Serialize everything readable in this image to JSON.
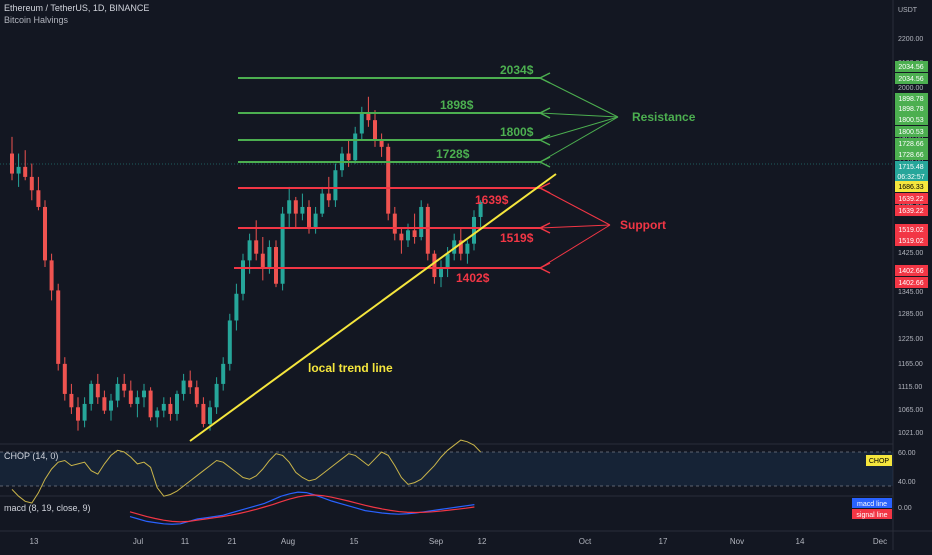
{
  "header": {
    "symbol_line": "Ethereum / TetherUS, 1D, BINANCE",
    "indicator": "Bitcoin Halvings"
  },
  "price_axis": {
    "currency": "USDT",
    "ticks": [
      "2200.00",
      "2100.00",
      "2000.00",
      "1900.00",
      "1800.00",
      "1725.00",
      "1650.00",
      "1575.00",
      "1500.00",
      "1425.00",
      "1345.00",
      "1285.00",
      "1225.00",
      "1165.00",
      "1115.00",
      "1065.00",
      "1021.00"
    ]
  },
  "time_axis": {
    "labels": [
      "13",
      "Jul",
      "11",
      "21",
      "Aug",
      "15",
      "Sep",
      "12",
      "Oct",
      "17",
      "Nov",
      "14",
      "Dec"
    ]
  },
  "price_badges": [
    {
      "text": "2034.56",
      "color": "#4caf50"
    },
    {
      "text": "2034.56",
      "color": "#4caf50"
    },
    {
      "text": "1898.78",
      "color": "#4caf50"
    },
    {
      "text": "1898.78",
      "color": "#4caf50"
    },
    {
      "text": "1800.53",
      "color": "#4caf50"
    },
    {
      "text": "1800.53",
      "color": "#4caf50"
    },
    {
      "text": "1728.66",
      "color": "#4caf50"
    },
    {
      "text": "1728.66",
      "color": "#4caf50"
    },
    {
      "text": "1715.48",
      "color": "#26a69a"
    },
    {
      "text": "06:32:57",
      "color": "#26a69a"
    },
    {
      "text": "1686.33",
      "color": "#f5e63d"
    },
    {
      "text": "1639.22",
      "color": "#f23645"
    },
    {
      "text": "1639.22",
      "color": "#f23645"
    },
    {
      "text": "1519.02",
      "color": "#f23645"
    },
    {
      "text": "1519.02",
      "color": "#f23645"
    },
    {
      "text": "1402.66",
      "color": "#f23645"
    },
    {
      "text": "1402.66",
      "color": "#f23645"
    }
  ],
  "annotations": {
    "resistance_label": "Resistance",
    "support_label": "Support",
    "trend_line_label": "local trend line",
    "level_labels": [
      "2034$",
      "1898$",
      "1800$",
      "1728$",
      "1639$",
      "1519$",
      "1402$"
    ]
  },
  "chop_pane": {
    "label": "CHOP (14, 0)",
    "ticks": [
      "60.00",
      "40.00"
    ],
    "badge": "CHOP"
  },
  "macd_pane": {
    "label": "macd (8, 19, close, 9)",
    "ticks": [
      "0.00"
    ],
    "legend": [
      "macd line",
      "signal line"
    ]
  },
  "colors": {
    "background": "#131722",
    "up": "#26a69a",
    "down": "#ef5350",
    "resistance": "#4caf50",
    "support": "#f23645",
    "trend": "#f5e63d"
  },
  "chart_data": {
    "type": "candlestick",
    "title": "Ethereum / TetherUS, 1D, BINANCE",
    "y_unit": "USDT",
    "ylim": [
      990,
      2230
    ],
    "x_range": [
      "Jun 6",
      "Dec 2"
    ],
    "candles_ohlc": [
      [
        1860,
        1910,
        1780,
        1800
      ],
      [
        1800,
        1860,
        1760,
        1820
      ],
      [
        1820,
        1870,
        1780,
        1790
      ],
      [
        1790,
        1830,
        1720,
        1750
      ],
      [
        1750,
        1790,
        1690,
        1700
      ],
      [
        1700,
        1720,
        1520,
        1540
      ],
      [
        1540,
        1560,
        1420,
        1450
      ],
      [
        1450,
        1470,
        1210,
        1230
      ],
      [
        1230,
        1250,
        1120,
        1140
      ],
      [
        1140,
        1170,
        1080,
        1100
      ],
      [
        1100,
        1130,
        1030,
        1060
      ],
      [
        1060,
        1130,
        1040,
        1110
      ],
      [
        1110,
        1180,
        1090,
        1170
      ],
      [
        1170,
        1200,
        1110,
        1130
      ],
      [
        1130,
        1150,
        1080,
        1090
      ],
      [
        1090,
        1140,
        1060,
        1120
      ],
      [
        1120,
        1190,
        1100,
        1170
      ],
      [
        1170,
        1200,
        1130,
        1150
      ],
      [
        1150,
        1180,
        1100,
        1110
      ],
      [
        1110,
        1150,
        1070,
        1130
      ],
      [
        1130,
        1170,
        1100,
        1150
      ],
      [
        1150,
        1160,
        1060,
        1070
      ],
      [
        1070,
        1100,
        1040,
        1090
      ],
      [
        1090,
        1130,
        1070,
        1110
      ],
      [
        1110,
        1130,
        1060,
        1080
      ],
      [
        1080,
        1150,
        1060,
        1140
      ],
      [
        1140,
        1200,
        1120,
        1180
      ],
      [
        1180,
        1210,
        1140,
        1160
      ],
      [
        1160,
        1180,
        1100,
        1110
      ],
      [
        1110,
        1130,
        1040,
        1050
      ],
      [
        1050,
        1120,
        1030,
        1100
      ],
      [
        1100,
        1190,
        1080,
        1170
      ],
      [
        1170,
        1250,
        1150,
        1230
      ],
      [
        1230,
        1380,
        1210,
        1360
      ],
      [
        1360,
        1470,
        1330,
        1440
      ],
      [
        1440,
        1560,
        1420,
        1540
      ],
      [
        1540,
        1620,
        1500,
        1600
      ],
      [
        1600,
        1660,
        1540,
        1560
      ],
      [
        1560,
        1610,
        1480,
        1520
      ],
      [
        1520,
        1600,
        1500,
        1580
      ],
      [
        1580,
        1600,
        1460,
        1470
      ],
      [
        1470,
        1700,
        1450,
        1680
      ],
      [
        1680,
        1760,
        1640,
        1720
      ],
      [
        1720,
        1730,
        1640,
        1680
      ],
      [
        1680,
        1740,
        1660,
        1700
      ],
      [
        1700,
        1720,
        1620,
        1640
      ],
      [
        1640,
        1700,
        1620,
        1680
      ],
      [
        1680,
        1760,
        1670,
        1740
      ],
      [
        1740,
        1790,
        1700,
        1720
      ],
      [
        1720,
        1830,
        1700,
        1810
      ],
      [
        1810,
        1880,
        1790,
        1860
      ],
      [
        1860,
        1900,
        1820,
        1840
      ],
      [
        1840,
        1940,
        1830,
        1920
      ],
      [
        1920,
        2000,
        1900,
        1980
      ],
      [
        1980,
        2030,
        1940,
        1960
      ],
      [
        1960,
        1990,
        1880,
        1900
      ],
      [
        1900,
        1920,
        1850,
        1880
      ],
      [
        1880,
        1890,
        1660,
        1680
      ],
      [
        1680,
        1700,
        1600,
        1620
      ],
      [
        1620,
        1640,
        1560,
        1600
      ],
      [
        1600,
        1650,
        1580,
        1630
      ],
      [
        1630,
        1680,
        1590,
        1610
      ],
      [
        1610,
        1720,
        1600,
        1700
      ],
      [
        1700,
        1710,
        1540,
        1560
      ],
      [
        1560,
        1570,
        1470,
        1490
      ],
      [
        1490,
        1540,
        1460,
        1520
      ],
      [
        1520,
        1580,
        1490,
        1560
      ],
      [
        1560,
        1620,
        1540,
        1600
      ],
      [
        1600,
        1640,
        1540,
        1560
      ],
      [
        1560,
        1600,
        1530,
        1590
      ],
      [
        1590,
        1690,
        1570,
        1670
      ],
      [
        1670,
        1720,
        1640,
        1715
      ]
    ],
    "overlay_lines": [
      {
        "name": "2034$",
        "price": 2034.56,
        "kind": "resistance"
      },
      {
        "name": "1898$",
        "price": 1898.78,
        "kind": "resistance"
      },
      {
        "name": "1800$",
        "price": 1800.53,
        "kind": "resistance"
      },
      {
        "name": "1728$",
        "price": 1728.66,
        "kind": "resistance"
      },
      {
        "name": "1639$",
        "price": 1639.22,
        "kind": "support"
      },
      {
        "name": "1519$",
        "price": 1519.02,
        "kind": "support"
      },
      {
        "name": "1402$",
        "price": 1402.66,
        "kind": "support"
      }
    ],
    "trend_line": {
      "from": {
        "date": "Jul 11",
        "price": 1020
      },
      "to": {
        "date": "Sep 25",
        "price": 1690
      }
    },
    "chop_values": [
      38,
      34,
      31,
      30,
      36,
      44,
      50,
      54,
      55,
      52,
      53,
      54,
      49,
      47,
      53,
      58,
      61,
      60,
      57,
      53,
      54,
      51,
      39,
      34,
      35,
      37,
      40,
      43,
      46,
      49,
      52,
      55,
      54,
      51,
      48,
      45,
      44,
      46,
      50,
      55,
      59,
      58,
      54,
      48,
      45,
      43,
      44,
      47,
      50,
      53,
      56,
      59,
      58,
      55,
      52,
      56,
      60,
      58,
      52,
      45,
      41,
      42,
      44,
      48,
      52,
      57,
      61,
      64,
      67,
      66,
      64,
      60
    ],
    "macd_values": [
      -0.4,
      -0.5,
      -0.6,
      -0.65,
      -0.7,
      -0.72,
      -0.7,
      -0.6,
      -0.5,
      -0.45,
      -0.4,
      -0.35,
      -0.25,
      -0.15,
      -0.05,
      0.05,
      0.15,
      0.3,
      0.45,
      0.55,
      0.62,
      0.6,
      0.5,
      0.38,
      0.25,
      0.15,
      0.05,
      -0.05,
      -0.15,
      -0.2,
      -0.25,
      -0.28,
      -0.3,
      -0.28,
      -0.25,
      -0.2,
      -0.15,
      -0.1,
      -0.05,
      0.0,
      0.05,
      0.1
    ],
    "signal_values": [
      -0.2,
      -0.3,
      -0.4,
      -0.48,
      -0.55,
      -0.6,
      -0.62,
      -0.6,
      -0.55,
      -0.5,
      -0.45,
      -0.4,
      -0.34,
      -0.27,
      -0.19,
      -0.1,
      0.0,
      0.1,
      0.22,
      0.33,
      0.42,
      0.48,
      0.5,
      0.47,
      0.41,
      0.33,
      0.25,
      0.16,
      0.07,
      -0.01,
      -0.08,
      -0.14,
      -0.19,
      -0.22,
      -0.23,
      -0.22,
      -0.2,
      -0.17,
      -0.13,
      -0.09,
      -0.05,
      0.0
    ]
  }
}
